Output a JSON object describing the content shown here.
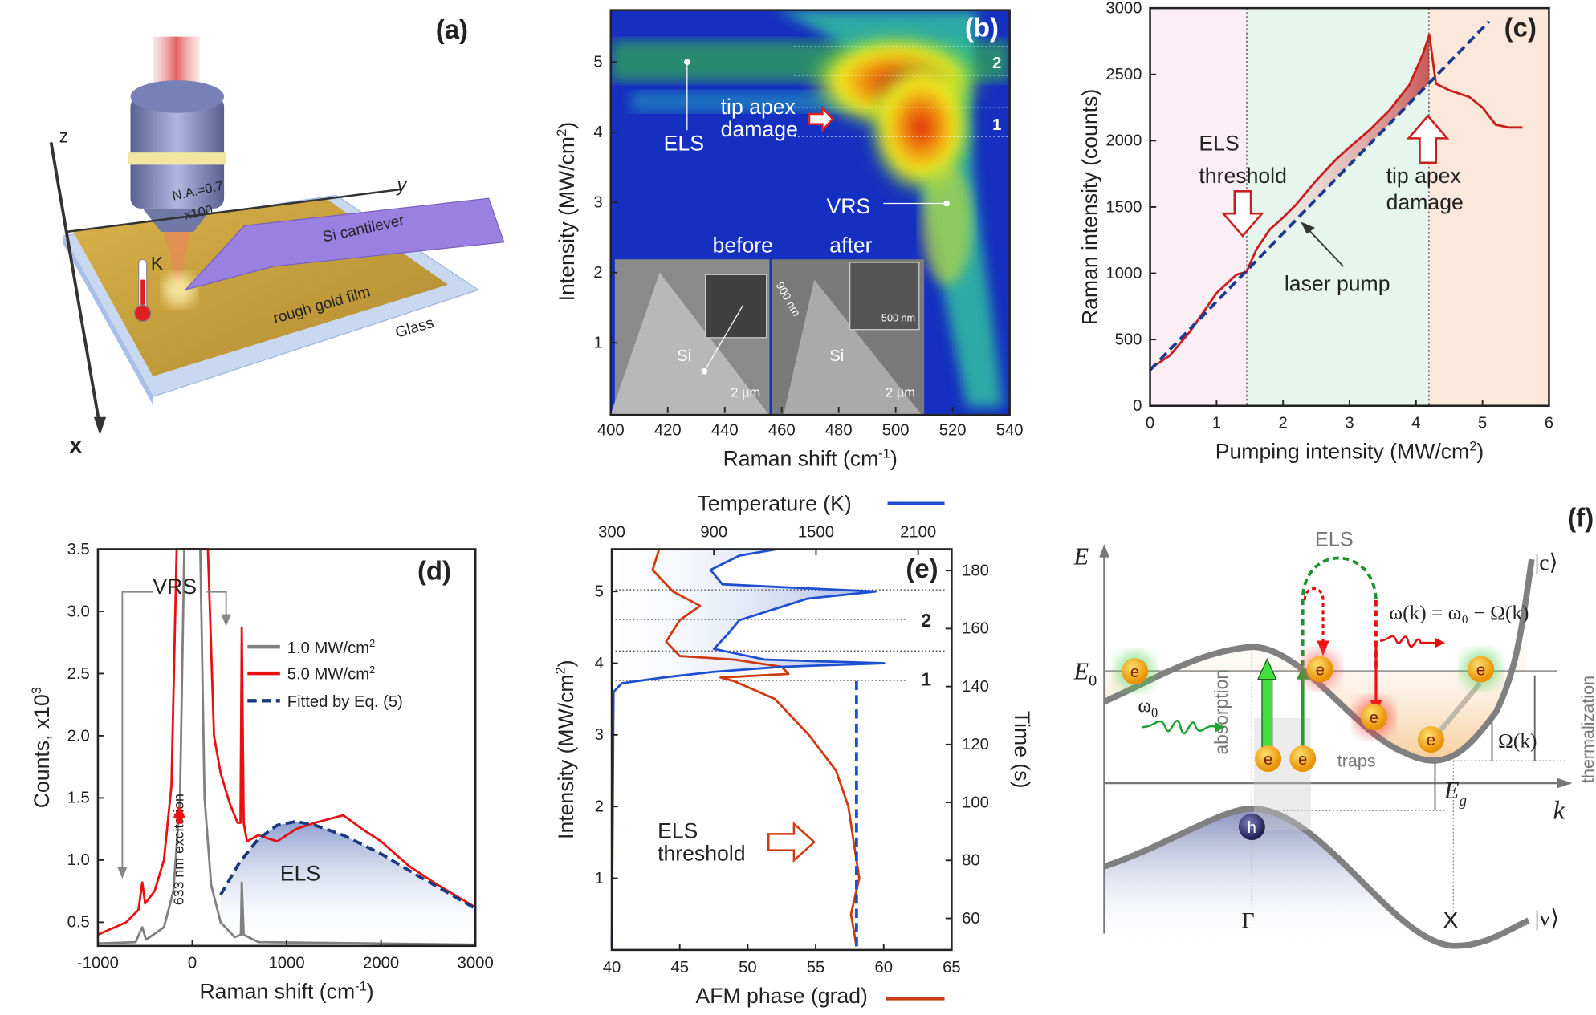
{
  "panel_a": {
    "label": "(a)",
    "axis_z": "z",
    "axis_y": "y",
    "axis_x": "x",
    "objective_na": "N.A.=0.7",
    "objective_mag": "x100",
    "cantilever": "Si cantilever",
    "film": "rough gold film",
    "substrate": "Glass",
    "thermometer": "K",
    "icon": "thermometer-icon"
  },
  "panel_f": {
    "label": "(f)",
    "axis_E": "E",
    "axis_k": "k",
    "E0": "E",
    "E0_sub": "0",
    "els": "ELS",
    "band_c": "|c⟩",
    "band_v": "|v⟩",
    "equation": "ω(k) = ω₀ − Ω(k)",
    "omega0": "ω",
    "omega0_sub": "0",
    "absorption": "absorption",
    "traps": "traps",
    "omega_k": "Ω(k)",
    "thermalization": "thermalization",
    "Eg": "E",
    "Eg_sub": "g",
    "gamma": "Γ",
    "X": "X",
    "electron": "e",
    "hole": "h"
  },
  "chart_data": [
    {
      "id": "b",
      "label": "(b)",
      "type": "heatmap",
      "xlabel": "Raman shift (cm",
      "xlabel_sup": "-1",
      "xlabel_end": ")",
      "ylabel": "Intensity (MW/cm",
      "ylabel_sup": "2",
      "ylabel_end": ")",
      "xlim": [
        400,
        540
      ],
      "ylim": [
        0,
        5.74
      ],
      "xticks": [
        "400",
        "420",
        "440",
        "460",
        "480",
        "500",
        "520",
        "540"
      ],
      "yticks": [
        "1",
        "2",
        "3",
        "4",
        "5"
      ],
      "colormap": [
        "#1530c0",
        "#1fa0d0",
        "#3cc040",
        "#f0f020",
        "#f05010"
      ],
      "annotations": {
        "els": "ELS",
        "damage1": "tip apex",
        "damage2": "damage",
        "vrs": "VRS",
        "band1": "1",
        "band2": "2"
      },
      "peak": {
        "raman_shift": 510,
        "intensity": 4.1
      },
      "inset": {
        "before": "before",
        "after": "after",
        "si1": "Si",
        "si2": "Si",
        "scale1": "2 µm",
        "scale2": "2 µm",
        "scale3": "900 nm",
        "scale4": "500 nm"
      }
    },
    {
      "id": "c",
      "label": "(c)",
      "type": "line",
      "xlabel": "Pumping intensity (MW/cm",
      "xlabel_sup": "2",
      "xlabel_end": ")",
      "ylabel": "Raman intensity (counts)",
      "xlim": [
        0,
        6
      ],
      "ylim": [
        0,
        3000
      ],
      "xticks": [
        "0",
        "1",
        "2",
        "3",
        "4",
        "5",
        "6"
      ],
      "yticks": [
        "0",
        "500",
        "1000",
        "1500",
        "2000",
        "2500",
        "3000"
      ],
      "regions": [
        {
          "from": 0,
          "to": 1.45,
          "color": "#fbeef5"
        },
        {
          "from": 1.45,
          "to": 4.2,
          "color": "#e6f6ec"
        },
        {
          "from": 4.2,
          "to": 6,
          "color": "#fbe8da"
        }
      ],
      "series": [
        {
          "color": "#c81e1e",
          "points": [
            [
              0,
              280
            ],
            [
              0.3,
              380
            ],
            [
              0.6,
              560
            ],
            [
              1.0,
              850
            ],
            [
              1.3,
              990
            ],
            [
              1.45,
              1010
            ],
            [
              1.6,
              1180
            ],
            [
              1.8,
              1330
            ],
            [
              2.0,
              1420
            ],
            [
              2.2,
              1520
            ],
            [
              2.5,
              1700
            ],
            [
              2.8,
              1860
            ],
            [
              3.0,
              1950
            ],
            [
              3.3,
              2080
            ],
            [
              3.6,
              2230
            ],
            [
              3.9,
              2420
            ],
            [
              4.1,
              2650
            ],
            [
              4.2,
              2800
            ],
            [
              4.3,
              2430
            ],
            [
              4.5,
              2380
            ],
            [
              4.8,
              2330
            ],
            [
              5.0,
              2250
            ],
            [
              5.2,
              2120
            ],
            [
              5.4,
              2100
            ],
            [
              5.6,
              2100
            ]
          ]
        },
        {
          "color": "#1a3a90",
          "dashed": true,
          "points": [
            [
              0,
              270
            ],
            [
              5.1,
              2900
            ]
          ]
        }
      ],
      "annotations": {
        "els1": "ELS",
        "els2": "threshold",
        "tip1": "tip apex",
        "tip2": "damage",
        "pump": "laser pump"
      }
    },
    {
      "id": "d",
      "label": "(d)",
      "type": "line",
      "xlabel": "Raman shift (cm",
      "xlabel_sup": "-1",
      "xlabel_end": ")",
      "ylabel": "Counts, x10",
      "ylabel_sup": "3",
      "xlim": [
        -1000,
        3000
      ],
      "ylim": [
        0.31,
        3.5
      ],
      "xticks": [
        "-1000",
        "0",
        "1000",
        "2000",
        "3000"
      ],
      "yticks": [
        "0.5",
        "1.0",
        "1.5",
        "2.0",
        "2.5",
        "3.0",
        "3.5"
      ],
      "series": [
        {
          "name": "1.0 MW/cm",
          "name_sup": "2",
          "color": "#808080",
          "points": [
            [
              -1000,
              0.33
            ],
            [
              -600,
              0.34
            ],
            [
              -530,
              0.46
            ],
            [
              -490,
              0.36
            ],
            [
              -300,
              0.46
            ],
            [
              -200,
              0.75
            ],
            [
              -130,
              1.5
            ],
            [
              -85,
              3.5
            ],
            [
              -70,
              3.5
            ],
            [
              70,
              3.5
            ],
            [
              85,
              3.5
            ],
            [
              130,
              1.5
            ],
            [
              200,
              0.8
            ],
            [
              300,
              0.5
            ],
            [
              450,
              0.38
            ],
            [
              515,
              0.4
            ],
            [
              525,
              0.82
            ],
            [
              545,
              0.4
            ],
            [
              700,
              0.34
            ],
            [
              3000,
              0.32
            ]
          ]
        },
        {
          "name": "5.0 MW/cm",
          "name_sup": "2",
          "color": "#e81010",
          "points": [
            [
              -1000,
              0.4
            ],
            [
              -700,
              0.5
            ],
            [
              -570,
              0.6
            ],
            [
              -530,
              0.82
            ],
            [
              -500,
              0.65
            ],
            [
              -400,
              0.75
            ],
            [
              -300,
              1.0
            ],
            [
              -220,
              1.6
            ],
            [
              -165,
              3.5
            ],
            [
              165,
              3.5
            ],
            [
              230,
              2.0
            ],
            [
              300,
              1.7
            ],
            [
              400,
              1.45
            ],
            [
              480,
              1.3
            ],
            [
              510,
              1.3
            ],
            [
              525,
              2.87
            ],
            [
              545,
              1.3
            ],
            [
              580,
              1.15
            ],
            [
              700,
              1.2
            ],
            [
              900,
              1.15
            ],
            [
              1100,
              1.25
            ],
            [
              1300,
              1.3
            ],
            [
              1600,
              1.36
            ],
            [
              1800,
              1.25
            ],
            [
              2000,
              1.15
            ],
            [
              2300,
              0.95
            ],
            [
              2600,
              0.8
            ],
            [
              3000,
              0.62
            ]
          ]
        },
        {
          "name": "Fitted by Eq. (5)",
          "color": "#1a3a80",
          "dashed": true,
          "points": [
            [
              300,
              0.72
            ],
            [
              500,
              0.98
            ],
            [
              700,
              1.17
            ],
            [
              900,
              1.28
            ],
            [
              1100,
              1.31
            ],
            [
              1300,
              1.28
            ],
            [
              1600,
              1.2
            ],
            [
              2000,
              1.05
            ],
            [
              2400,
              0.87
            ],
            [
              2700,
              0.74
            ],
            [
              3000,
              0.61
            ]
          ]
        }
      ],
      "legend_position": "top-right",
      "annotations": {
        "vrs": "VRS",
        "els": "ELS",
        "excitation": "633 nm excitation"
      }
    },
    {
      "id": "e",
      "label": "(e)",
      "type": "line",
      "xlabel": "AFM phase (grad)",
      "top_label": "Temperature (K)",
      "ylabel": "Intensity (MW/cm",
      "ylabel_sup": "2",
      "ylabel_end": ")",
      "y2label": "Time (s)",
      "xlim": [
        40,
        65
      ],
      "ylim": [
        0,
        5.59
      ],
      "x2lim": [
        300,
        2297
      ],
      "y2lim": [
        49.1,
        187.4
      ],
      "xticks": [
        "40",
        "45",
        "50",
        "55",
        "60",
        "65"
      ],
      "x2ticks": [
        "300",
        "900",
        "1500",
        "2100"
      ],
      "yticks": [
        "1",
        "2",
        "3",
        "4",
        "5"
      ],
      "y2ticks": [
        "60",
        "80",
        "100",
        "120",
        "140",
        "160",
        "180"
      ],
      "series": [
        {
          "axis": "AFM phase",
          "color": "#d03a10",
          "points": [
            [
              58,
              0.05
            ],
            [
              57.6,
              0.5
            ],
            [
              58.2,
              1.0
            ],
            [
              57.8,
              1.5
            ],
            [
              57.4,
              2.0
            ],
            [
              56.5,
              2.5
            ],
            [
              54.5,
              3.0
            ],
            [
              52,
              3.5
            ],
            [
              49,
              3.75
            ],
            [
              48,
              3.8
            ],
            [
              53,
              3.85
            ],
            [
              52.5,
              3.95
            ],
            [
              49,
              4.05
            ],
            [
              45,
              4.1
            ],
            [
              44,
              4.3
            ],
            [
              45,
              4.6
            ],
            [
              46.5,
              4.8
            ],
            [
              44.5,
              5.0
            ],
            [
              43,
              5.3
            ],
            [
              43.5,
              5.6
            ]
          ]
        },
        {
          "axis": "Temperature",
          "color": "#1d4fd0",
          "points": [
            [
              300,
              0.05
            ],
            [
              310,
              3.6
            ],
            [
              360,
              3.72
            ],
            [
              600,
              3.8
            ],
            [
              900,
              3.88
            ],
            [
              1300,
              3.95
            ],
            [
              1900,
              4.0
            ],
            [
              1200,
              4.05
            ],
            [
              900,
              4.2
            ],
            [
              980,
              4.4
            ],
            [
              1050,
              4.6
            ],
            [
              1250,
              4.75
            ],
            [
              1450,
              4.9
            ],
            [
              1850,
              5.0
            ],
            [
              1400,
              5.05
            ],
            [
              950,
              5.1
            ],
            [
              880,
              5.3
            ],
            [
              1050,
              5.5
            ],
            [
              1270,
              5.59
            ]
          ]
        },
        {
          "axis": "AFM phase",
          "color": "#1d4fd0",
          "dashed": true,
          "points": [
            [
              58,
              0.05
            ],
            [
              58,
              3.75
            ]
          ]
        }
      ],
      "annotations": {
        "els1": "ELS",
        "els2": "threshold",
        "band1": "1",
        "band2": "2"
      }
    }
  ]
}
